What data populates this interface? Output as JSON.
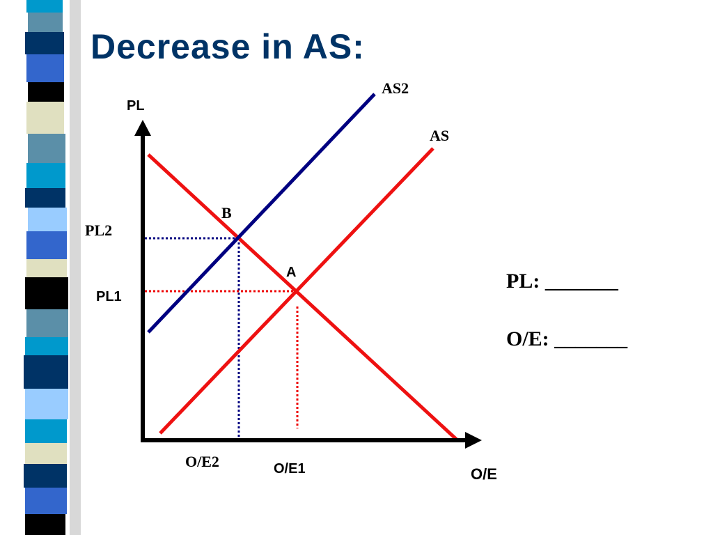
{
  "title": "Decrease in AS:",
  "diagram": {
    "y_axis_label": "PL",
    "x_axis_label": "O/E",
    "curves": {
      "as2": "AS2",
      "as": "AS"
    },
    "points": {
      "b": "B",
      "a": "A"
    },
    "y_levels": {
      "pl2": "PL2",
      "pl1": "PL1"
    },
    "x_levels": {
      "oe2": "O/E2",
      "oe1": "O/E1"
    }
  },
  "questions": [
    "PL: _______",
    "O/E: _______"
  ]
}
